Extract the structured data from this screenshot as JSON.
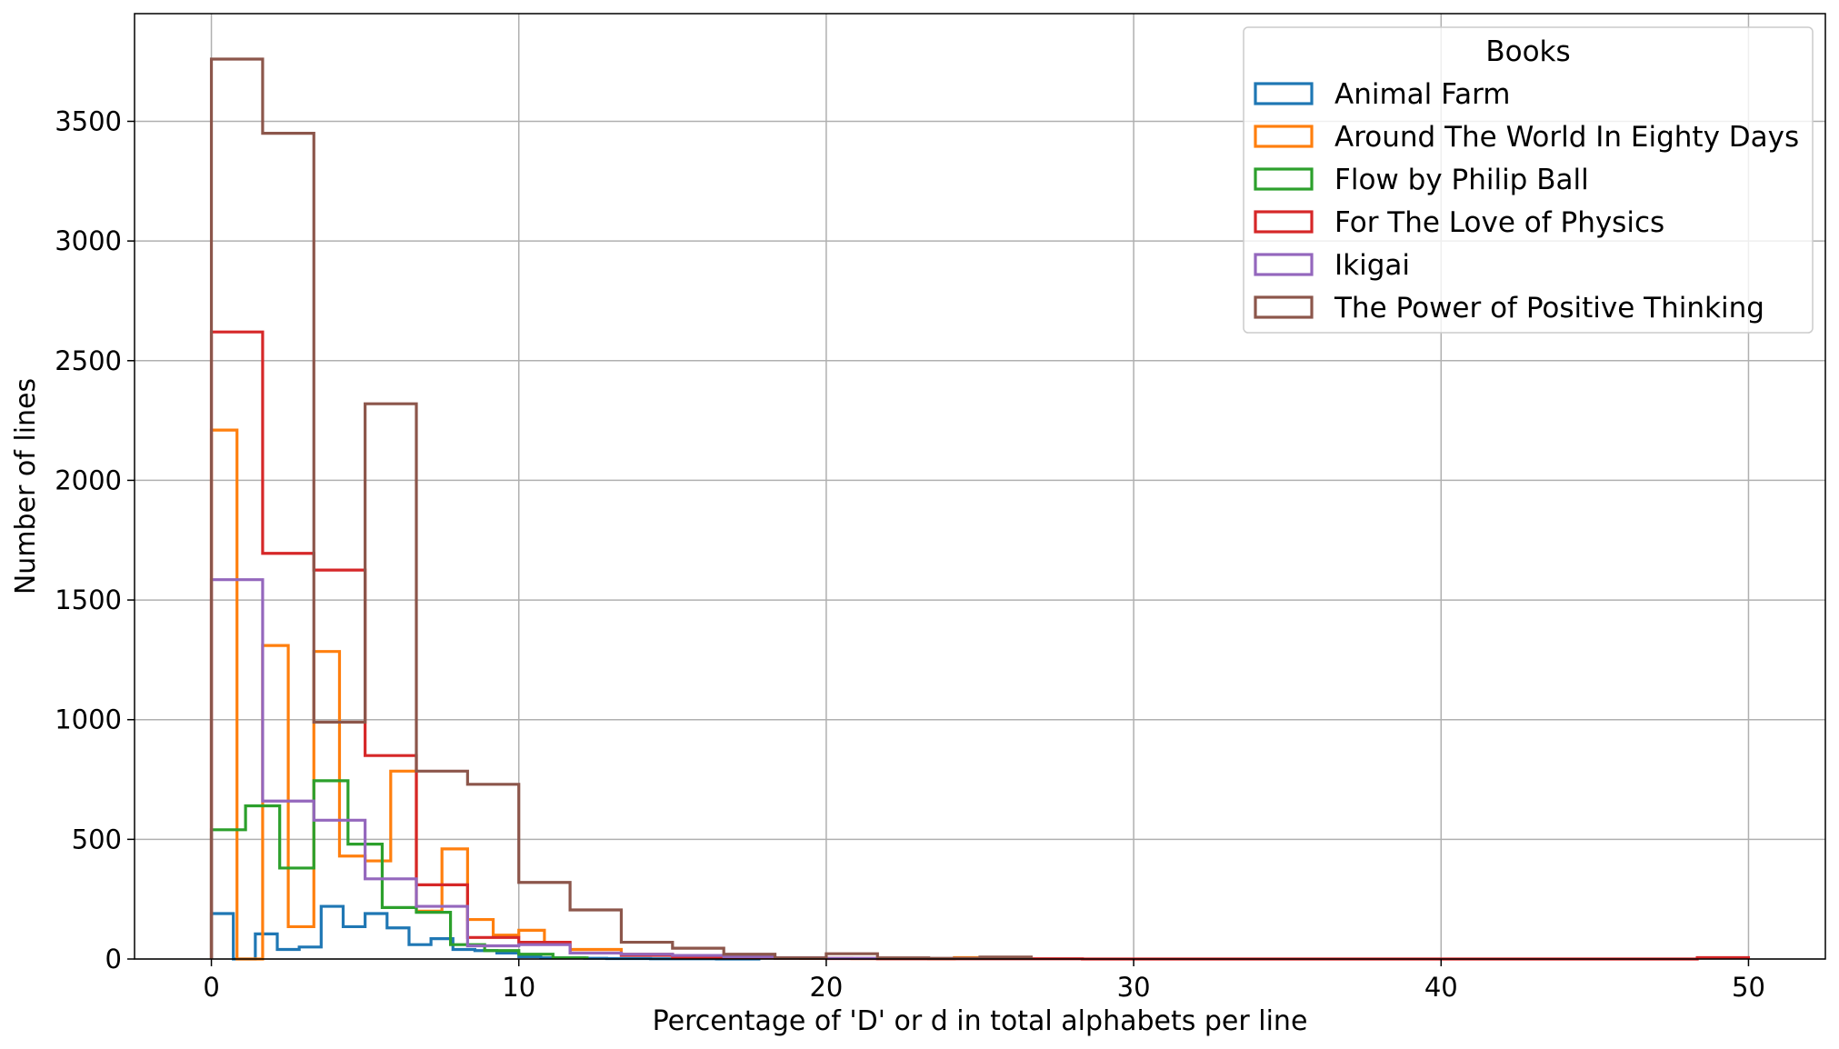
{
  "chart_data": {
    "type": "histogram-step",
    "xlabel": "Percentage of 'D' or d in total alphabets per line",
    "ylabel": "Number of lines",
    "xlim": [
      -2.5,
      52.5
    ],
    "ylim": [
      0,
      3950
    ],
    "xticks": [
      0,
      10,
      20,
      30,
      40,
      50
    ],
    "yticks": [
      0,
      500,
      1000,
      1500,
      2000,
      2500,
      3000,
      3500
    ],
    "grid": true,
    "legend": {
      "title": "Books",
      "position": "top-right"
    },
    "series": [
      {
        "name": "Animal Farm",
        "color": "#1f77b4",
        "edges": [
          0,
          0.714,
          1.429,
          2.143,
          2.857,
          3.571,
          4.286,
          5.0,
          5.714,
          6.429,
          7.143,
          7.857,
          8.571,
          9.286,
          10.0,
          10.714,
          11.429,
          12.143,
          12.857,
          13.571,
          14.286,
          15.0,
          15.714,
          16.429,
          17.143,
          17.857
        ],
        "counts": [
          190,
          0,
          105,
          40,
          50,
          220,
          135,
          190,
          130,
          60,
          85,
          40,
          35,
          25,
          10,
          5,
          5,
          3,
          2,
          2,
          1,
          1,
          1,
          0,
          0
        ]
      },
      {
        "name": "Around The World In Eighty Days",
        "color": "#ff7f0e",
        "edges": [
          0,
          0.833,
          1.667,
          2.5,
          3.333,
          4.167,
          5.0,
          5.833,
          6.667,
          7.5,
          8.333,
          9.167,
          10.0,
          10.833,
          11.667,
          12.5,
          13.333,
          14.167,
          15.0,
          15.833,
          16.667,
          17.5,
          18.333,
          19.167,
          20.0,
          20.833,
          21.667,
          22.5,
          23.333,
          24.167,
          25.0,
          25.833
        ],
        "counts": [
          2210,
          0,
          1310,
          135,
          1285,
          430,
          410,
          785,
          200,
          460,
          165,
          100,
          120,
          65,
          40,
          40,
          20,
          20,
          10,
          10,
          8,
          5,
          4,
          3,
          3,
          2,
          2,
          2,
          1,
          6,
          3
        ]
      },
      {
        "name": "Flow by Philip Ball",
        "color": "#2ca02c",
        "edges": [
          0,
          1.111,
          2.222,
          3.333,
          4.444,
          5.556,
          6.667,
          7.778,
          8.889,
          10.0,
          11.111,
          12.222
        ],
        "counts": [
          540,
          640,
          380,
          745,
          480,
          215,
          195,
          60,
          35,
          20,
          5
        ]
      },
      {
        "name": "For The Love of Physics",
        "color": "#d62728",
        "edges": [
          0,
          1.667,
          3.333,
          5.0,
          6.667,
          8.333,
          10.0,
          11.667,
          13.333,
          15.0,
          16.667,
          18.333,
          20.0,
          21.667,
          23.333,
          25.0,
          26.667,
          28.333,
          30.0,
          31.667,
          33.333,
          35.0,
          36.667,
          38.333,
          40.0,
          41.667,
          43.333,
          45.0,
          46.667,
          48.333,
          50.0
        ],
        "counts": [
          2620,
          1695,
          1625,
          850,
          310,
          90,
          70,
          25,
          15,
          8,
          5,
          3,
          2,
          1,
          1,
          1,
          1,
          0,
          0,
          0,
          0,
          0,
          0,
          0,
          0,
          0,
          0,
          0,
          0,
          6
        ]
      },
      {
        "name": "Ikigai",
        "color": "#9467bd",
        "edges": [
          0,
          1.667,
          3.333,
          5.0,
          6.667,
          8.333,
          10.0,
          11.667,
          13.333,
          15.0,
          16.667,
          18.333,
          20.0,
          21.667
        ],
        "counts": [
          1585,
          660,
          580,
          335,
          220,
          55,
          60,
          25,
          20,
          15,
          10,
          5,
          3
        ]
      },
      {
        "name": "The Power of Positive Thinking",
        "color": "#8c564b",
        "edges": [
          0,
          1.667,
          3.333,
          5.0,
          6.667,
          8.333,
          10.0,
          11.667,
          13.333,
          15.0,
          16.667,
          18.333,
          20.0,
          21.667,
          23.333,
          25.0,
          26.667
        ],
        "counts": [
          3760,
          3450,
          990,
          2320,
          785,
          730,
          320,
          205,
          70,
          45,
          20,
          5,
          22,
          5,
          3,
          8
        ]
      }
    ]
  }
}
